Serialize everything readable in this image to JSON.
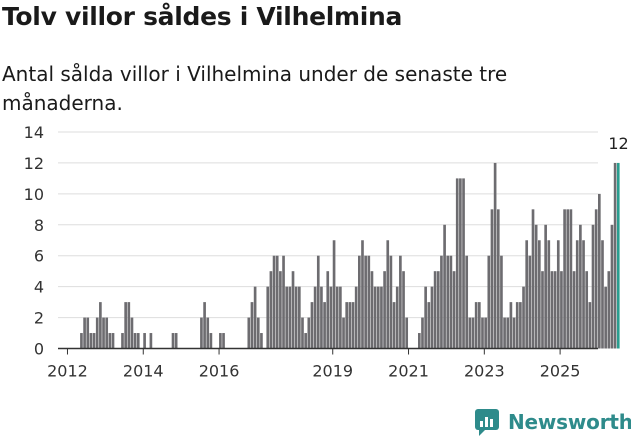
{
  "title": "Tolv villor såldes i Vilhelmina",
  "subtitle": "Antal sålda villor i Vilhelmina under de senaste tre månaderna.",
  "brand": {
    "name": "Newsworthy",
    "logo_icon": "newsworthy-logo-icon"
  },
  "colors": {
    "bar": "#6d6c70",
    "highlight": "#2a9d8f",
    "grid": "#dddddd",
    "axis": "#333333",
    "brand": "#2e8b8b"
  },
  "chart_data": {
    "type": "bar",
    "title": "Tolv villor såldes i Vilhelmina",
    "subtitle": "Antal sålda villor i Vilhelmina under de senaste tre månaderna.",
    "xlabel": "",
    "ylabel": "",
    "ylim": [
      0,
      14
    ],
    "y_ticks": [
      0,
      2,
      4,
      6,
      8,
      10,
      12,
      14
    ],
    "x_ticks": [
      "2012",
      "2014",
      "2016",
      "2019",
      "2021",
      "2023",
      "2025"
    ],
    "x_start": "2011-10",
    "x_end": "2025-12",
    "period": "monthly (rolling three-month count)",
    "grid": true,
    "highlight_label": "12",
    "values": [
      0,
      0,
      0,
      0,
      0,
      0,
      0,
      1,
      2,
      2,
      1,
      1,
      2,
      3,
      2,
      2,
      1,
      1,
      0,
      0,
      1,
      3,
      3,
      2,
      1,
      1,
      0,
      1,
      0,
      1,
      0,
      0,
      0,
      0,
      0,
      0,
      1,
      1,
      0,
      0,
      0,
      0,
      0,
      0,
      0,
      2,
      3,
      2,
      1,
      0,
      0,
      1,
      1,
      0,
      0,
      0,
      0,
      0,
      0,
      0,
      2,
      3,
      4,
      2,
      1,
      0,
      4,
      5,
      6,
      6,
      5,
      6,
      4,
      4,
      5,
      4,
      4,
      2,
      1,
      2,
      3,
      4,
      6,
      4,
      3,
      5,
      4,
      7,
      4,
      4,
      2,
      3,
      3,
      3,
      4,
      6,
      7,
      6,
      6,
      5,
      4,
      4,
      4,
      5,
      7,
      6,
      3,
      4,
      6,
      5,
      2,
      0,
      0,
      0,
      1,
      2,
      4,
      3,
      4,
      5,
      5,
      6,
      8,
      6,
      6,
      5,
      11,
      11,
      11,
      6,
      2,
      2,
      3,
      3,
      2,
      2,
      6,
      9,
      12,
      9,
      6,
      2,
      2,
      3,
      2,
      3,
      3,
      4,
      7,
      6,
      9,
      8,
      7,
      5,
      8,
      7,
      5,
      5,
      7,
      5,
      9,
      9,
      9,
      5,
      7,
      8,
      7,
      5,
      3,
      8,
      9,
      10,
      7,
      4,
      5,
      8,
      12,
      12
    ],
    "highlight_count": 1
  }
}
